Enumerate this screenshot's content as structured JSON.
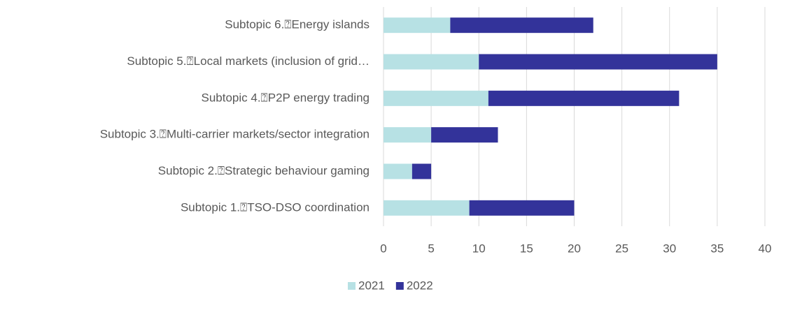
{
  "chart_data": {
    "type": "stacked-barh",
    "categories": [
      "Subtopic 1.⍰TSO-DSO coordination",
      "Subtopic 2.⍰Strategic behaviour gaming",
      "Subtopic 3.⍰Multi-carrier markets/sector integration",
      "Subtopic 4.⍰P2P energy trading",
      "Subtopic 5.⍰Local markets (inclusion of grid…",
      "Subtopic 6.⍰Energy islands"
    ],
    "series": [
      {
        "name": "2021",
        "color": "#b7e1e4",
        "values": [
          9,
          3,
          5,
          11,
          10,
          7
        ]
      },
      {
        "name": "2022",
        "color": "#33339a",
        "values": [
          11,
          2,
          7,
          20,
          25,
          15
        ]
      }
    ],
    "xlim": [
      0,
      40
    ],
    "xticks": [
      0,
      5,
      10,
      15,
      20,
      25,
      30,
      35,
      40
    ],
    "grid": true,
    "legend": "bottom"
  }
}
